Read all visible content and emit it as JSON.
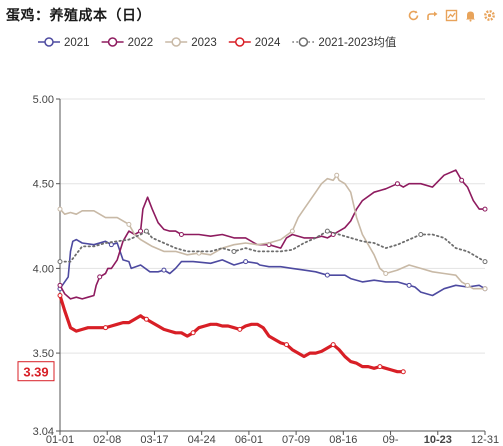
{
  "title": "蛋鸡：养殖成本（日）",
  "toolbar": {
    "icons": [
      "refresh-icon",
      "share-icon",
      "download-icon",
      "bell-icon",
      "settings-icon"
    ]
  },
  "chart_data": {
    "type": "line",
    "title": "蛋鸡：养殖成本（日）",
    "x_ticks": [
      "01-01",
      "02-08",
      "03-17",
      "04-24",
      "06-01",
      "07-09",
      "08-16",
      "09-",
      "10-23",
      "12-31"
    ],
    "highlight_x_tick": "10-23",
    "ylim": [
      3.04,
      5.0
    ],
    "y_ticks": [
      "5.00",
      "4.50",
      "4.00",
      "3.50",
      "3.04"
    ],
    "last_value_label": "3.39",
    "grid": true,
    "legend_position": "top",
    "series": [
      {
        "name": "2021",
        "color": "#4d4aa0",
        "x": [
          1,
          8,
          10,
          12,
          15,
          20,
          30,
          40,
          45,
          50,
          55,
          60,
          62,
          70,
          78,
          85,
          90,
          95,
          100,
          105,
          115,
          130,
          140,
          150,
          160,
          170,
          172,
          180,
          190,
          200,
          210,
          220,
          230,
          240,
          245,
          250,
          260,
          270,
          280,
          290,
          300,
          305,
          310,
          320,
          330,
          340,
          350,
          360,
          365
        ],
        "y": [
          3.88,
          3.95,
          4.1,
          4.16,
          4.17,
          4.15,
          4.14,
          4.16,
          4.14,
          4.15,
          4.05,
          4.04,
          4.0,
          4.02,
          3.98,
          3.98,
          3.99,
          3.97,
          4.0,
          4.04,
          4.04,
          4.03,
          4.05,
          4.02,
          4.04,
          4.03,
          4.02,
          4.01,
          4.01,
          4.0,
          3.99,
          3.98,
          3.96,
          3.96,
          3.96,
          3.94,
          3.92,
          3.93,
          3.92,
          3.92,
          3.9,
          3.89,
          3.86,
          3.84,
          3.88,
          3.9,
          3.89,
          3.9,
          3.88
        ]
      },
      {
        "name": "2022",
        "color": "#8e1b5f",
        "x": [
          1,
          5,
          10,
          15,
          20,
          25,
          30,
          32,
          35,
          40,
          42,
          45,
          50,
          55,
          60,
          65,
          70,
          72,
          76,
          80,
          85,
          90,
          95,
          100,
          105,
          110,
          120,
          130,
          140,
          150,
          160,
          170,
          180,
          190,
          195,
          200,
          210,
          220,
          225,
          230,
          235,
          240,
          245,
          250,
          255,
          260,
          270,
          280,
          290,
          295,
          300,
          305,
          310,
          320,
          330,
          340,
          345,
          350,
          355,
          360,
          365
        ],
        "y": [
          3.9,
          3.85,
          3.82,
          3.83,
          3.82,
          3.83,
          3.84,
          3.9,
          3.95,
          3.97,
          4.0,
          4.0,
          4.05,
          4.16,
          4.22,
          4.2,
          4.22,
          4.35,
          4.42,
          4.35,
          4.27,
          4.23,
          4.22,
          4.22,
          4.2,
          4.2,
          4.2,
          4.19,
          4.2,
          4.18,
          4.18,
          4.14,
          4.14,
          4.12,
          4.18,
          4.2,
          4.18,
          4.18,
          4.19,
          4.18,
          4.2,
          4.22,
          4.24,
          4.28,
          4.35,
          4.4,
          4.45,
          4.47,
          4.5,
          4.48,
          4.5,
          4.5,
          4.5,
          4.48,
          4.55,
          4.58,
          4.52,
          4.48,
          4.4,
          4.35,
          4.35
        ]
      },
      {
        "name": "2023",
        "color": "#c8b9a6",
        "x": [
          1,
          5,
          10,
          15,
          20,
          30,
          40,
          50,
          60,
          65,
          70,
          75,
          80,
          90,
          100,
          110,
          120,
          130,
          140,
          150,
          160,
          170,
          180,
          190,
          200,
          205,
          210,
          215,
          220,
          225,
          230,
          235,
          238,
          240,
          245,
          250,
          255,
          260,
          270,
          275,
          280,
          290,
          300,
          310,
          320,
          330,
          340,
          345,
          350,
          355,
          360,
          365
        ],
        "y": [
          4.35,
          4.32,
          4.33,
          4.32,
          4.34,
          4.34,
          4.3,
          4.3,
          4.26,
          4.2,
          4.17,
          4.15,
          4.13,
          4.1,
          4.1,
          4.08,
          4.09,
          4.08,
          4.12,
          4.14,
          4.15,
          4.14,
          4.15,
          4.17,
          4.22,
          4.3,
          4.35,
          4.4,
          4.45,
          4.5,
          4.53,
          4.52,
          4.55,
          4.52,
          4.5,
          4.45,
          4.3,
          4.2,
          4.08,
          4.0,
          3.97,
          3.99,
          4.02,
          4.0,
          3.98,
          3.97,
          3.96,
          3.92,
          3.9,
          3.88,
          3.88,
          3.88
        ]
      },
      {
        "name": "2024",
        "color": "#d81f26",
        "x": [
          1,
          5,
          10,
          15,
          20,
          25,
          30,
          35,
          40,
          45,
          50,
          55,
          60,
          65,
          70,
          72,
          75,
          80,
          85,
          90,
          95,
          100,
          105,
          110,
          115,
          120,
          125,
          130,
          135,
          140,
          145,
          150,
          155,
          160,
          165,
          170,
          175,
          180,
          185,
          190,
          195,
          200,
          205,
          210,
          215,
          220,
          225,
          230,
          235,
          240,
          245,
          250,
          255,
          260,
          265,
          270,
          275,
          280,
          285,
          290,
          295
        ],
        "y": [
          3.84,
          3.75,
          3.65,
          3.63,
          3.64,
          3.65,
          3.65,
          3.65,
          3.65,
          3.66,
          3.67,
          3.68,
          3.68,
          3.7,
          3.72,
          3.71,
          3.7,
          3.68,
          3.66,
          3.64,
          3.63,
          3.62,
          3.62,
          3.6,
          3.62,
          3.65,
          3.66,
          3.67,
          3.67,
          3.66,
          3.66,
          3.65,
          3.64,
          3.66,
          3.67,
          3.67,
          3.65,
          3.6,
          3.58,
          3.56,
          3.55,
          3.52,
          3.5,
          3.48,
          3.5,
          3.5,
          3.51,
          3.53,
          3.55,
          3.52,
          3.48,
          3.45,
          3.44,
          3.42,
          3.42,
          3.41,
          3.42,
          3.41,
          3.4,
          3.39,
          3.39
        ]
      },
      {
        "name": "2021-2023均值",
        "color": "#6e6e6e",
        "dotted": true,
        "x": [
          1,
          10,
          20,
          30,
          40,
          50,
          60,
          70,
          75,
          80,
          90,
          100,
          110,
          120,
          130,
          140,
          150,
          160,
          170,
          180,
          190,
          200,
          210,
          220,
          230,
          240,
          250,
          260,
          270,
          280,
          290,
          300,
          310,
          320,
          330,
          340,
          350,
          360,
          365
        ],
        "y": [
          4.04,
          4.04,
          4.13,
          4.13,
          4.15,
          4.16,
          4.17,
          4.2,
          4.22,
          4.18,
          4.15,
          4.12,
          4.1,
          4.1,
          4.1,
          4.12,
          4.1,
          4.12,
          4.1,
          4.1,
          4.1,
          4.11,
          4.15,
          4.18,
          4.22,
          4.2,
          4.18,
          4.16,
          4.15,
          4.12,
          4.14,
          4.17,
          4.2,
          4.2,
          4.18,
          4.12,
          4.1,
          4.06,
          4.04
        ]
      }
    ]
  }
}
